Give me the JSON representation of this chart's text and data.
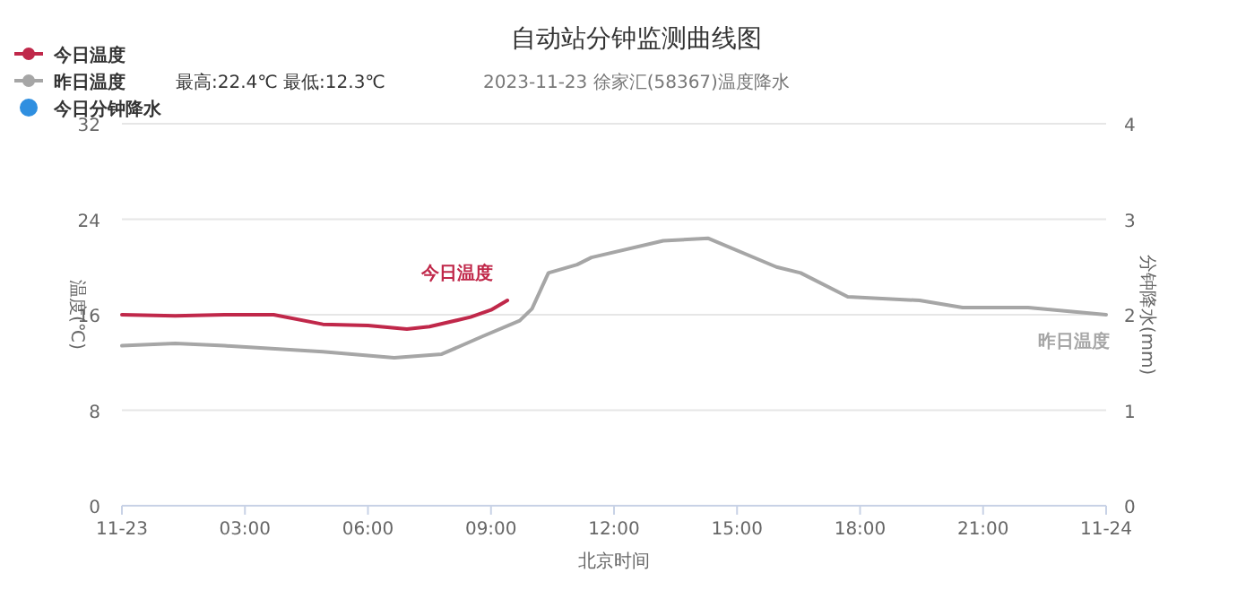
{
  "chart_data": {
    "type": "line",
    "title": "自动站分钟监测曲线图",
    "subtitle": "2023-11-23 徐家汇(58367)温度降水",
    "xlabel": "北京时间",
    "ylabel": "温度(℃)",
    "y2label": "分钟降水(mm)",
    "xlim": [
      0,
      24
    ],
    "xticks": [
      {
        "value": 0,
        "label": "11-23"
      },
      {
        "value": 3,
        "label": "03:00"
      },
      {
        "value": 6,
        "label": "06:00"
      },
      {
        "value": 9,
        "label": "09:00"
      },
      {
        "value": 12,
        "label": "12:00"
      },
      {
        "value": 15,
        "label": "15:00"
      },
      {
        "value": 18,
        "label": "18:00"
      },
      {
        "value": 21,
        "label": "21:00"
      },
      {
        "value": 24,
        "label": "11-24"
      }
    ],
    "ylim": [
      0,
      32
    ],
    "yticks": [
      0,
      8,
      16,
      24,
      32
    ],
    "y2lim": [
      0,
      4
    ],
    "y2ticks": [
      0,
      1,
      2,
      3,
      4
    ],
    "grid": "y",
    "legend": "top left",
    "series": [
      {
        "name": "今日温度",
        "color": "#c0284a",
        "x": [
          0,
          1.3,
          2.5,
          3.7,
          4.9,
          6.0,
          6.95,
          7.5,
          8.5,
          9.0,
          9.4
        ],
        "values": [
          16.0,
          15.9,
          16.0,
          16.0,
          15.2,
          15.1,
          14.8,
          15.0,
          15.8,
          16.4,
          17.2
        ]
      },
      {
        "name": "昨日温度",
        "color": "#a6a6a6",
        "x": [
          0,
          1.3,
          2.5,
          4.9,
          6.64,
          7.8,
          8.8,
          9.7,
          10.0,
          10.4,
          11.1,
          11.45,
          13.2,
          14.3,
          15.96,
          16.55,
          17.7,
          19.45,
          20.5,
          22.1,
          24
        ],
        "values": [
          13.4,
          13.6,
          13.4,
          12.9,
          12.4,
          12.7,
          14.2,
          15.5,
          16.5,
          19.5,
          20.2,
          20.8,
          22.2,
          22.4,
          20.0,
          19.5,
          17.5,
          17.2,
          16.6,
          16.6,
          16.0
        ]
      },
      {
        "name": "今日分钟降水",
        "color": "#2f8fe0",
        "type": "scatter"
      }
    ],
    "annotations": [
      "今日温度",
      "昨日温度",
      "最高:22.4℃ 最低:12.3℃"
    ]
  }
}
